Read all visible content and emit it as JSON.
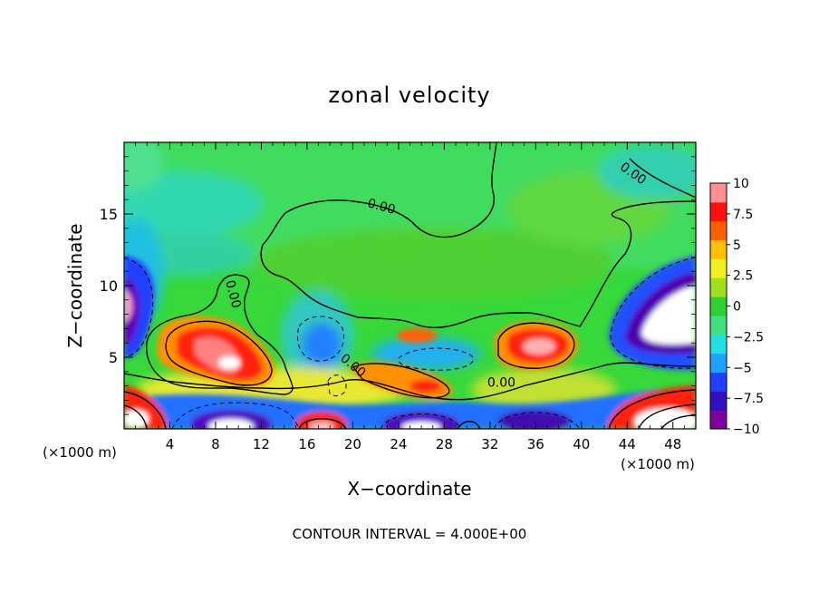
{
  "chart_data": {
    "type": "heatmap",
    "title": "zonal velocity",
    "xlabel": "X−coordinate",
    "ylabel": "Z−coordinate",
    "x_unit_label_left": "(×1000 m)",
    "x_unit_label_right": "(×1000 m)",
    "xlim": [
      0,
      50
    ],
    "ylim": [
      0,
      20
    ],
    "x_ticks": [
      4,
      8,
      12,
      16,
      20,
      24,
      28,
      32,
      36,
      40,
      44,
      48
    ],
    "x_tick_labels": [
      "4",
      "8",
      "12",
      "16",
      "20",
      "24",
      "28",
      "32",
      "36",
      "40",
      "44",
      "48"
    ],
    "y_ticks": [
      5,
      10,
      15
    ],
    "y_tick_labels": [
      "5",
      "10",
      "15"
    ],
    "colorbar": {
      "ticks": [
        10,
        7.5,
        5,
        2.5,
        0,
        -2.5,
        -5,
        -7.5,
        -10
      ],
      "tick_labels": [
        "10",
        "7.5",
        "5",
        "2.5",
        "0",
        "−2.5",
        "−5",
        "−7.5",
        "−10"
      ],
      "range": [
        -10,
        10
      ],
      "colors": [
        "#8000a0",
        "#3010c0",
        "#2040ff",
        "#20a0ff",
        "#20e0e0",
        "#40e080",
        "#30d030",
        "#a0e020",
        "#f0f020",
        "#ffc000",
        "#ff6000",
        "#ff1010",
        "#ff9090"
      ]
    },
    "contour_labels": [
      {
        "text": "0.00",
        "x": 44.5,
        "y": 17.8,
        "angle": 35
      },
      {
        "text": "0.00",
        "x": 22.5,
        "y": 15.5,
        "angle": 15
      },
      {
        "text": "0.00",
        "x": 9.5,
        "y": 9.4,
        "angle": 75
      },
      {
        "text": "0.00",
        "x": 20.0,
        "y": 4.4,
        "angle": 40
      },
      {
        "text": "0.00",
        "x": 33.0,
        "y": 3.2,
        "angle": 0
      }
    ],
    "features": [
      {
        "name": "west-upper-negative",
        "x": 0.5,
        "z": 8.5,
        "value": -10
      },
      {
        "name": "positive-cell-8-12",
        "x": 9.0,
        "z": 5.0,
        "value": 10
      },
      {
        "name": "positive-cell-36",
        "x": 35.0,
        "z": 5.6,
        "value": 10
      },
      {
        "name": "positive-cell-26",
        "x": 26.0,
        "z": 3.0,
        "value": 7.5
      },
      {
        "name": "east-negative-core",
        "x": 46.5,
        "z": 7.0,
        "value": -10
      },
      {
        "name": "east-positive-bottom",
        "x": 47.0,
        "z": 1.0,
        "value": 10
      },
      {
        "name": "west-positive-bottom",
        "x": 1.0,
        "z": 0.8,
        "value": 10
      },
      {
        "name": "blue-pocket-17",
        "x": 16.5,
        "z": 6.0,
        "value": -5
      },
      {
        "name": "upper-cyan-band",
        "x": 12.0,
        "z": 16.0,
        "value": -2.5
      }
    ],
    "grid": false,
    "legend": "colorbar-right",
    "footnote": "CONTOUR INTERVAL = 4.000E+00"
  }
}
